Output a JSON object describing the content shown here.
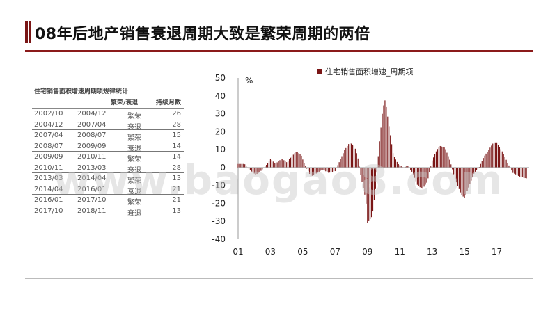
{
  "page": {
    "title": "08年后地产销售衰退周期大致是繁荣周期的两倍",
    "watermark": "www.baogao8.com"
  },
  "table": {
    "title": "住宅销售面积增速周期项规律统计",
    "headers": [
      "",
      "",
      "繁荣/衰退",
      "持续月数"
    ],
    "rows": [
      {
        "start": "2002/10",
        "end": "2004/12",
        "phase": "繁荣",
        "months": "26"
      },
      {
        "start": "2004/12",
        "end": "2007/04",
        "phase": "衰退",
        "months": "28"
      },
      {
        "start": "2007/04",
        "end": "2008/07",
        "phase": "繁荣",
        "months": "15"
      },
      {
        "start": "2008/07",
        "end": "2009/09",
        "phase": "衰退",
        "months": "14"
      },
      {
        "start": "2009/09",
        "end": "2010/11",
        "phase": "繁荣",
        "months": "14"
      },
      {
        "start": "2010/11",
        "end": "2013/03",
        "phase": "衰退",
        "months": "28"
      },
      {
        "start": "2013/03",
        "end": "2014/04",
        "phase": "繁荣",
        "months": "13"
      },
      {
        "start": "2014/04",
        "end": "2016/01",
        "phase": "衰退",
        "months": "21"
      },
      {
        "start": "2016/01",
        "end": "2017/10",
        "phase": "繁荣",
        "months": "21"
      },
      {
        "start": "2017/10",
        "end": "2018/11",
        "phase": "衰退",
        "months": "13"
      }
    ],
    "separators_after": [
      1,
      3,
      5,
      7
    ]
  },
  "chart_data": {
    "type": "bar",
    "title": "",
    "unit_label": "%",
    "legend": [
      "住宅销售面积增速_周期项"
    ],
    "legend_position": "top",
    "bar_color": "#7a1616",
    "x_tick_labels": [
      "01",
      "03",
      "05",
      "07",
      "09",
      "11",
      "13",
      "15",
      "17"
    ],
    "x_start_year": 2001,
    "ylim": [
      -40,
      50
    ],
    "y_ticks": [
      -40,
      -30,
      -20,
      -10,
      0,
      10,
      20,
      30,
      40,
      50
    ],
    "grid": false,
    "anchors": [
      [
        2001.0,
        2
      ],
      [
        2001.4,
        2
      ],
      [
        2001.8,
        -2
      ],
      [
        2002.1,
        -4
      ],
      [
        2002.4,
        -2
      ],
      [
        2002.8,
        2
      ],
      [
        2003.0,
        5
      ],
      [
        2003.3,
        2
      ],
      [
        2003.7,
        5
      ],
      [
        2004.0,
        3
      ],
      [
        2004.3,
        6
      ],
      [
        2004.6,
        9
      ],
      [
        2004.9,
        7
      ],
      [
        2005.1,
        2
      ],
      [
        2005.5,
        -5
      ],
      [
        2005.9,
        -3
      ],
      [
        2006.2,
        -1
      ],
      [
        2006.6,
        -3
      ],
      [
        2007.0,
        -2
      ],
      [
        2007.3,
        4
      ],
      [
        2007.6,
        10
      ],
      [
        2007.9,
        14
      ],
      [
        2008.2,
        12
      ],
      [
        2008.4,
        6
      ],
      [
        2008.6,
        -5
      ],
      [
        2008.9,
        -18
      ],
      [
        2009.0,
        -31
      ],
      [
        2009.3,
        -27
      ],
      [
        2009.5,
        -12
      ],
      [
        2009.7,
        10
      ],
      [
        2009.95,
        33
      ],
      [
        2010.1,
        38
      ],
      [
        2010.35,
        22
      ],
      [
        2010.6,
        7
      ],
      [
        2010.9,
        2
      ],
      [
        2011.2,
        0
      ],
      [
        2011.5,
        1
      ],
      [
        2011.8,
        -3
      ],
      [
        2012.1,
        -10
      ],
      [
        2012.4,
        -12
      ],
      [
        2012.7,
        -8
      ],
      [
        2013.0,
        4
      ],
      [
        2013.3,
        10
      ],
      [
        2013.5,
        12
      ],
      [
        2013.8,
        11
      ],
      [
        2014.1,
        4
      ],
      [
        2014.4,
        -6
      ],
      [
        2014.8,
        -15
      ],
      [
        2015.0,
        -17
      ],
      [
        2015.3,
        -10
      ],
      [
        2015.6,
        -3
      ],
      [
        2015.9,
        0
      ],
      [
        2016.2,
        6
      ],
      [
        2016.5,
        10
      ],
      [
        2016.8,
        14
      ],
      [
        2017.0,
        14
      ],
      [
        2017.4,
        8
      ],
      [
        2017.7,
        2
      ],
      [
        2018.0,
        -3
      ],
      [
        2018.4,
        -5
      ],
      [
        2018.8,
        -6
      ]
    ]
  }
}
